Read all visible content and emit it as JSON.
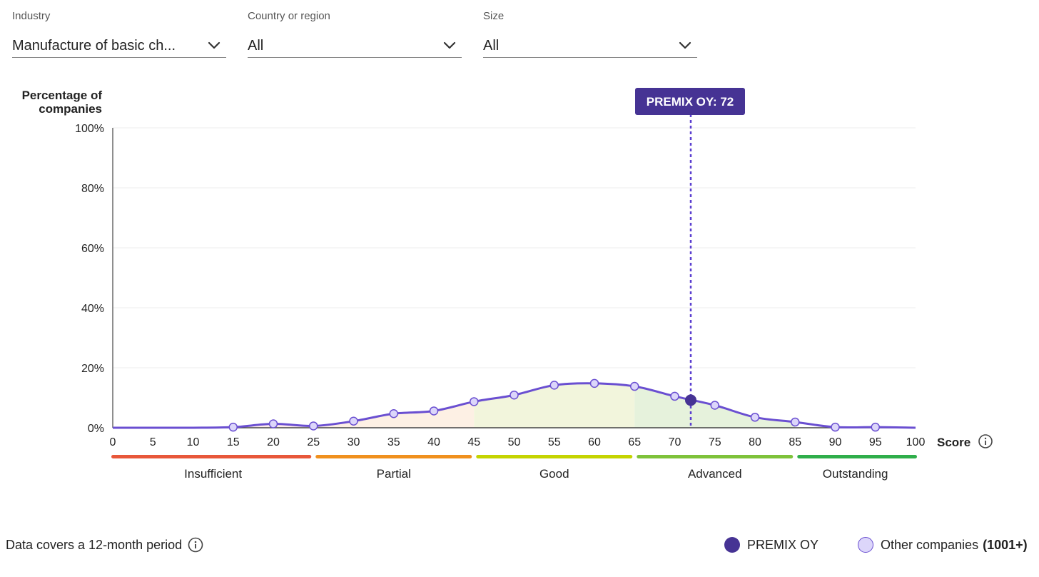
{
  "filters": {
    "industry": {
      "label": "Industry",
      "value": "Manufacture of basic ch..."
    },
    "country": {
      "label": "Country or region",
      "value": "All"
    },
    "size": {
      "label": "Size",
      "value": "All"
    }
  },
  "chart_data": {
    "type": "area",
    "ylabel": [
      "Percentage of",
      "companies"
    ],
    "xlabel": "Score",
    "xlim": [
      0,
      100
    ],
    "ylim": [
      0,
      100
    ],
    "x_ticks": [
      0,
      5,
      10,
      15,
      20,
      25,
      30,
      35,
      40,
      45,
      50,
      55,
      60,
      65,
      70,
      75,
      80,
      85,
      90,
      95,
      100
    ],
    "y_ticks": [
      0,
      20,
      40,
      60,
      80,
      100
    ],
    "y_tick_labels": [
      "0%",
      "20%",
      "40%",
      "60%",
      "80%",
      "100%"
    ],
    "grid": true,
    "series": [
      {
        "name": "Other companies",
        "x": [
          15,
          20,
          25,
          30,
          35,
          40,
          45,
          50,
          55,
          60,
          65,
          70,
          75,
          80,
          85,
          90,
          95
        ],
        "y": [
          0.2,
          1.3,
          0.6,
          2.2,
          4.7,
          5.6,
          8.7,
          10.9,
          14.2,
          14.8,
          13.8,
          10.5,
          7.5,
          3.5,
          1.9,
          0.2,
          0.2
        ]
      }
    ],
    "highlight": {
      "name": "PREMIX OY",
      "label": "PREMIX OY: 72",
      "x": 72,
      "y": 9.2
    },
    "bands": [
      {
        "label": "Insufficient",
        "from": 0,
        "to": 25,
        "color": "#e8573a",
        "fill": "#fdecea"
      },
      {
        "label": "Partial",
        "from": 25,
        "to": 45,
        "color": "#f0901e",
        "fill": "#fdf0e4"
      },
      {
        "label": "Good",
        "from": 45,
        "to": 65,
        "color": "#c5d400",
        "fill": "#f2f5dc"
      },
      {
        "label": "Advanced",
        "from": 65,
        "to": 85,
        "color": "#7ec23a",
        "fill": "#e6f2dc"
      },
      {
        "label": "Outstanding",
        "from": 85,
        "to": 100,
        "color": "#2fae4a",
        "fill": "#ffffff"
      }
    ],
    "colors": {
      "line": "#6a4fd1",
      "highlight": "#463394",
      "point_fill": "#dcd6fa",
      "highlight_line": "#5b3fd0"
    }
  },
  "footer": {
    "note": "Data covers a 12-month period"
  },
  "legend": {
    "company": "PREMIX OY",
    "others": "Other companies",
    "others_count": "(1001+)"
  },
  "icons": {
    "chevron": "chevron-down-icon",
    "info": "info-icon"
  }
}
